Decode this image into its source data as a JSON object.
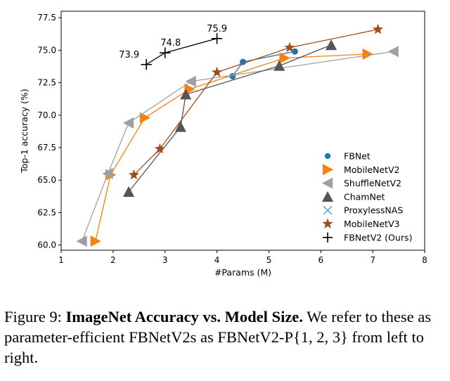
{
  "chart_data": {
    "type": "scatter",
    "xlabel": "#Params (M)",
    "ylabel": "Top-1 accuracy (%)",
    "xlim": [
      1,
      8
    ],
    "ylim": [
      59.6,
      78.0
    ],
    "xticks": [
      1,
      2,
      3,
      4,
      5,
      6,
      7,
      8
    ],
    "yticks": [
      60.0,
      62.5,
      65.0,
      67.5,
      70.0,
      72.5,
      75.0,
      77.5
    ],
    "xtick_labels": [
      "1",
      "2",
      "3",
      "4",
      "5",
      "6",
      "7",
      "8"
    ],
    "ytick_labels": [
      "60.0",
      "62.5",
      "65.0",
      "67.5",
      "70.0",
      "72.5",
      "75.0",
      "77.5"
    ],
    "legend_position": "lower-right",
    "series": [
      {
        "name": "FBNet",
        "marker": "dot",
        "color": "#1f77b4",
        "x": [
          4.3,
          4.5,
          5.5
        ],
        "y": [
          73.0,
          74.1,
          74.9
        ]
      },
      {
        "name": "MobileNetV2",
        "marker": "triangle-right",
        "color": "#ff7f0e",
        "x": [
          1.66,
          1.95,
          2.61,
          3.47,
          5.3,
          6.9
        ],
        "y": [
          60.3,
          65.4,
          69.8,
          72.0,
          74.4,
          74.7
        ]
      },
      {
        "name": "ShuffleNetV2",
        "marker": "triangle-left",
        "color": "#a0a0a0",
        "x": [
          1.4,
          1.9,
          2.3,
          3.5,
          7.4
        ],
        "y": [
          60.3,
          65.5,
          69.4,
          72.6,
          74.9
        ]
      },
      {
        "name": "ChamNet",
        "marker": "triangle-up",
        "color": "#555555",
        "x": [
          2.3,
          3.3,
          3.4,
          5.2,
          6.2
        ],
        "y": [
          64.1,
          69.1,
          71.6,
          73.8,
          75.4
        ]
      },
      {
        "name": "ProxylessNAS",
        "marker": "x",
        "color": "#6a9fd8",
        "x": [],
        "y": []
      },
      {
        "name": "MobileNetV3",
        "marker": "star",
        "color": "#a04d1a",
        "x": [
          2.4,
          2.9,
          4.0,
          5.4,
          7.1
        ],
        "y": [
          65.4,
          67.4,
          73.3,
          75.2,
          76.6
        ]
      },
      {
        "name": "FBNetV2 (Ours)",
        "marker": "plus",
        "color": "#000000",
        "x": [
          2.64,
          3.0,
          4.0
        ],
        "y": [
          73.9,
          74.8,
          75.9
        ]
      }
    ],
    "annotations": [
      {
        "text": "73.9",
        "x": 2.64,
        "y": 73.9
      },
      {
        "text": "74.8",
        "x": 3.0,
        "y": 74.8
      },
      {
        "text": "75.9",
        "x": 4.0,
        "y": 75.9
      }
    ]
  },
  "caption": {
    "prefix": "Figure 9: ",
    "bold": "ImageNet Accuracy vs. Model Size.",
    "rest": " We refer to these as parameter-efficient FBNetV2s as FBNetV2-P{1, 2, 3} from left to right."
  }
}
